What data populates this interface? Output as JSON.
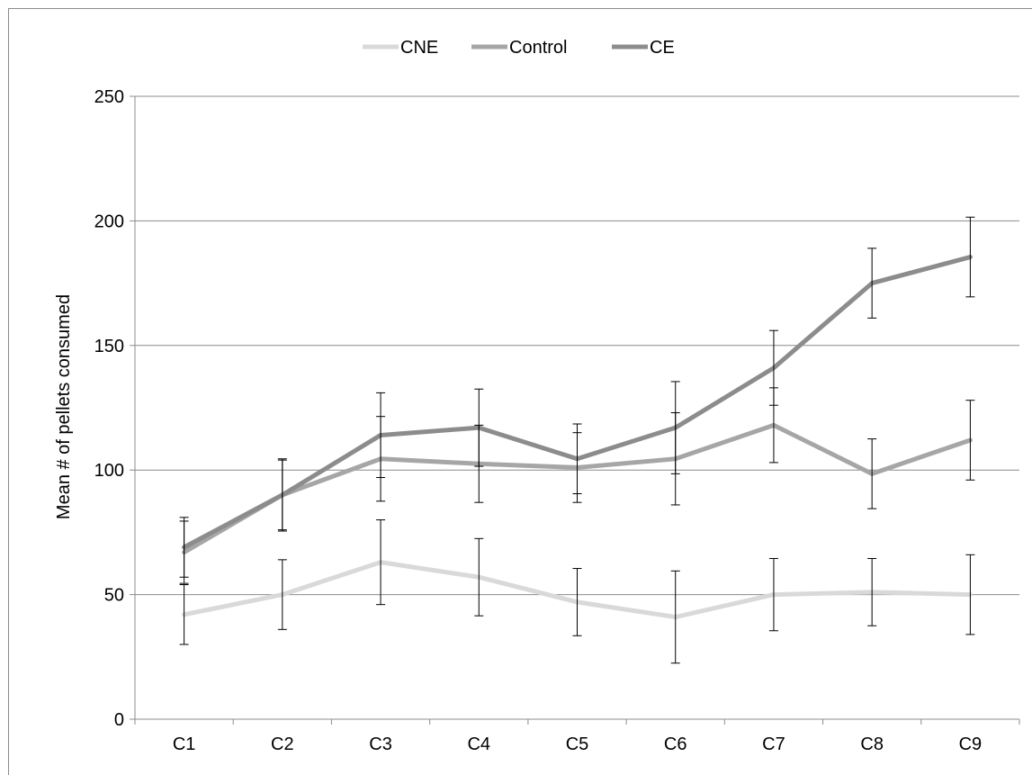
{
  "chart_data": {
    "type": "line",
    "categories": [
      "C1",
      "C2",
      "C3",
      "C4",
      "C5",
      "C6",
      "C7",
      "C8",
      "C9"
    ],
    "ylabel": "Mean # of pellets consumed",
    "xlabel": "",
    "ylim": [
      0,
      250
    ],
    "yticks": [
      0,
      50,
      100,
      150,
      200,
      250
    ],
    "grid": "horizontal",
    "legend_position": "top",
    "series": [
      {
        "name": "CNE",
        "color": "#d9d9d9",
        "values": [
          42,
          50,
          63,
          57,
          47,
          41,
          50,
          51,
          50
        ],
        "errors": [
          12,
          14,
          17,
          15.5,
          13.5,
          18.5,
          14.5,
          13.5,
          16
        ]
      },
      {
        "name": "Control",
        "color": "#a6a6a6",
        "values": [
          67,
          90,
          104.5,
          102.5,
          101,
          104.5,
          118,
          98.5,
          112
        ],
        "errors": [
          12.5,
          14,
          17,
          15.5,
          14,
          18.5,
          15,
          14,
          16
        ]
      },
      {
        "name": "CE",
        "color": "#8c8c8c",
        "values": [
          69,
          90,
          114,
          117,
          104.5,
          117,
          141,
          175,
          185.5
        ],
        "errors": [
          12,
          14.5,
          17,
          15.5,
          14,
          18.5,
          15,
          14,
          16
        ]
      }
    ]
  }
}
